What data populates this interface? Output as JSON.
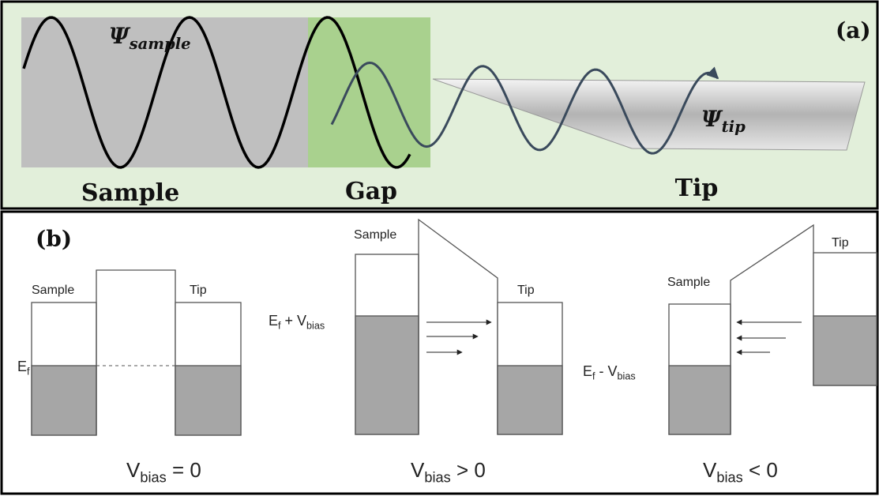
{
  "panel_a": {
    "label": "(a)",
    "psi_sample": [
      {
        "text": "Ψ"
      },
      {
        "sub": "sample"
      }
    ],
    "psi_tip": [
      {
        "text": "Ψ"
      },
      {
        "sub": "tip"
      }
    ],
    "regions": [
      "Sample",
      "Gap",
      "Tip"
    ]
  },
  "panel_b": {
    "label": "(b)",
    "diagrams": [
      {
        "sample_label": "Sample",
        "tip_label": "Tip",
        "level": [
          {
            "text": "E"
          },
          {
            "sub": "f"
          }
        ],
        "condition": [
          {
            "text": "V"
          },
          {
            "sub": "bias"
          },
          {
            "text": " = 0"
          }
        ]
      },
      {
        "sample_label": "Sample",
        "tip_label": "Tip",
        "level": [
          {
            "text": "E"
          },
          {
            "sub": "f"
          },
          {
            "text": " + V"
          },
          {
            "sub": "bias"
          }
        ],
        "condition": [
          {
            "text": "V"
          },
          {
            "sub": "bias"
          },
          {
            "text": " > 0"
          }
        ]
      },
      {
        "sample_label": "Sample",
        "tip_label": "Tip",
        "level": [
          {
            "text": "E"
          },
          {
            "sub": "f"
          },
          {
            "text": " - V"
          },
          {
            "sub": "bias"
          }
        ],
        "condition": [
          {
            "text": "V"
          },
          {
            "sub": "bias"
          },
          {
            "text": " < 0"
          }
        ]
      }
    ]
  }
}
